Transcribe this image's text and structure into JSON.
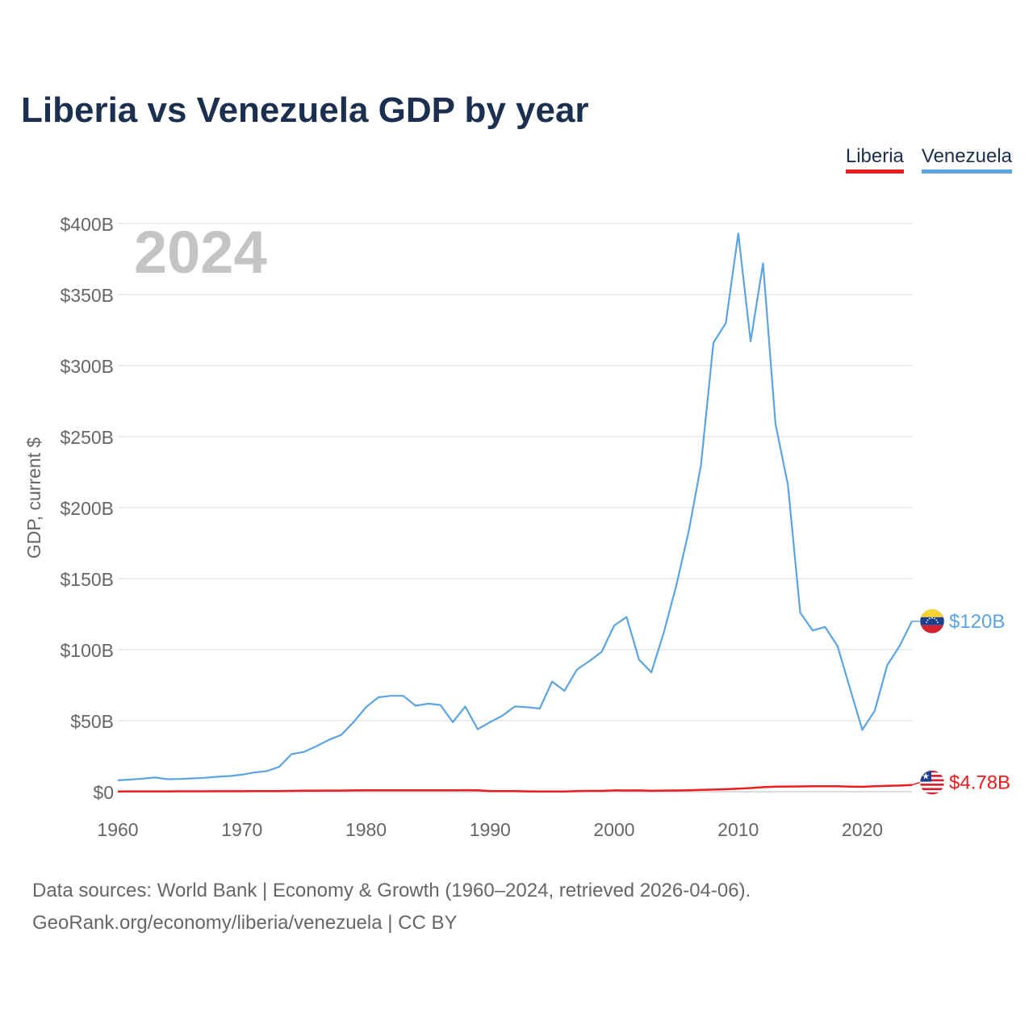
{
  "title": "Liberia vs Venezuela GDP by year",
  "year_overlay": "2024",
  "legend": [
    {
      "name": "Liberia",
      "color": "#ee1c1c"
    },
    {
      "name": "Venezuela",
      "color": "#5aa4e2"
    }
  ],
  "footer": {
    "line1": "Data sources: World Bank | Economy & Growth (1960–2024, retrieved 2026-04-06).",
    "line2": "GeoRank.org/economy/liberia/venezuela | CC BY"
  },
  "chart_data": {
    "type": "line",
    "title": "Liberia vs Venezuela GDP by year",
    "xlabel": "",
    "ylabel": "GDP, current $",
    "xlim": [
      1960,
      2024
    ],
    "ylim": [
      0,
      400
    ],
    "y_unit": "billions USD",
    "x_ticks": [
      1960,
      1970,
      1980,
      1990,
      2000,
      2010,
      2020
    ],
    "y_ticks": [
      0,
      50,
      100,
      150,
      200,
      250,
      300,
      350,
      400
    ],
    "y_tick_labels": [
      "$0",
      "$50B",
      "$100B",
      "$150B",
      "$200B",
      "$250B",
      "$300B",
      "$350B",
      "$400B"
    ],
    "grid": true,
    "legend_position": "top-right",
    "x": [
      1960,
      1961,
      1962,
      1963,
      1964,
      1965,
      1966,
      1967,
      1968,
      1969,
      1970,
      1971,
      1972,
      1973,
      1974,
      1975,
      1976,
      1977,
      1978,
      1979,
      1980,
      1981,
      1982,
      1983,
      1984,
      1985,
      1986,
      1987,
      1988,
      1989,
      1990,
      1991,
      1992,
      1993,
      1994,
      1995,
      1996,
      1997,
      1998,
      1999,
      2000,
      2001,
      2002,
      2003,
      2004,
      2005,
      2006,
      2007,
      2008,
      2009,
      2010,
      2011,
      2012,
      2013,
      2014,
      2015,
      2016,
      2017,
      2018,
      2019,
      2020,
      2021,
      2022,
      2023,
      2024
    ],
    "series": [
      {
        "name": "Venezuela",
        "color": "#5aa4e2",
        "end_label": "$120B",
        "values": [
          8,
          8.5,
          9.2,
          10,
          8.8,
          9,
          9.4,
          9.8,
          10.5,
          11,
          12,
          13.5,
          14.5,
          17.5,
          26.5,
          28,
          32,
          36.5,
          40,
          49,
          59.5,
          66.5,
          67.5,
          67.5,
          60.5,
          62,
          61,
          49,
          60,
          44,
          49,
          53.5,
          60,
          59.5,
          58.5,
          77.5,
          71,
          86,
          92,
          98.5,
          117,
          123,
          93,
          84,
          112,
          145,
          183,
          230,
          316,
          330,
          393,
          317,
          372,
          259,
          216,
          126,
          113.5,
          116,
          102.5,
          73,
          43.5,
          57,
          89,
          102.5,
          120
        ]
      },
      {
        "name": "Liberia",
        "color": "#ee1c1c",
        "end_label": "$4.78B",
        "values": [
          0.19,
          0.2,
          0.21,
          0.22,
          0.24,
          0.26,
          0.28,
          0.3,
          0.32,
          0.33,
          0.35,
          0.38,
          0.43,
          0.48,
          0.58,
          0.66,
          0.71,
          0.77,
          0.82,
          0.91,
          0.95,
          0.95,
          0.96,
          0.97,
          0.95,
          0.97,
          1.0,
          1.04,
          1.07,
          0.98,
          0.38,
          0.39,
          0.4,
          0.2,
          0.15,
          0.13,
          0.15,
          0.42,
          0.54,
          0.55,
          0.9,
          0.84,
          0.91,
          0.63,
          0.77,
          0.88,
          1.01,
          1.25,
          1.5,
          1.74,
          2.15,
          2.57,
          3.19,
          3.51,
          3.65,
          3.71,
          3.86,
          3.86,
          3.89,
          3.56,
          3.46,
          3.88,
          4.1,
          4.3,
          4.78
        ]
      }
    ]
  }
}
